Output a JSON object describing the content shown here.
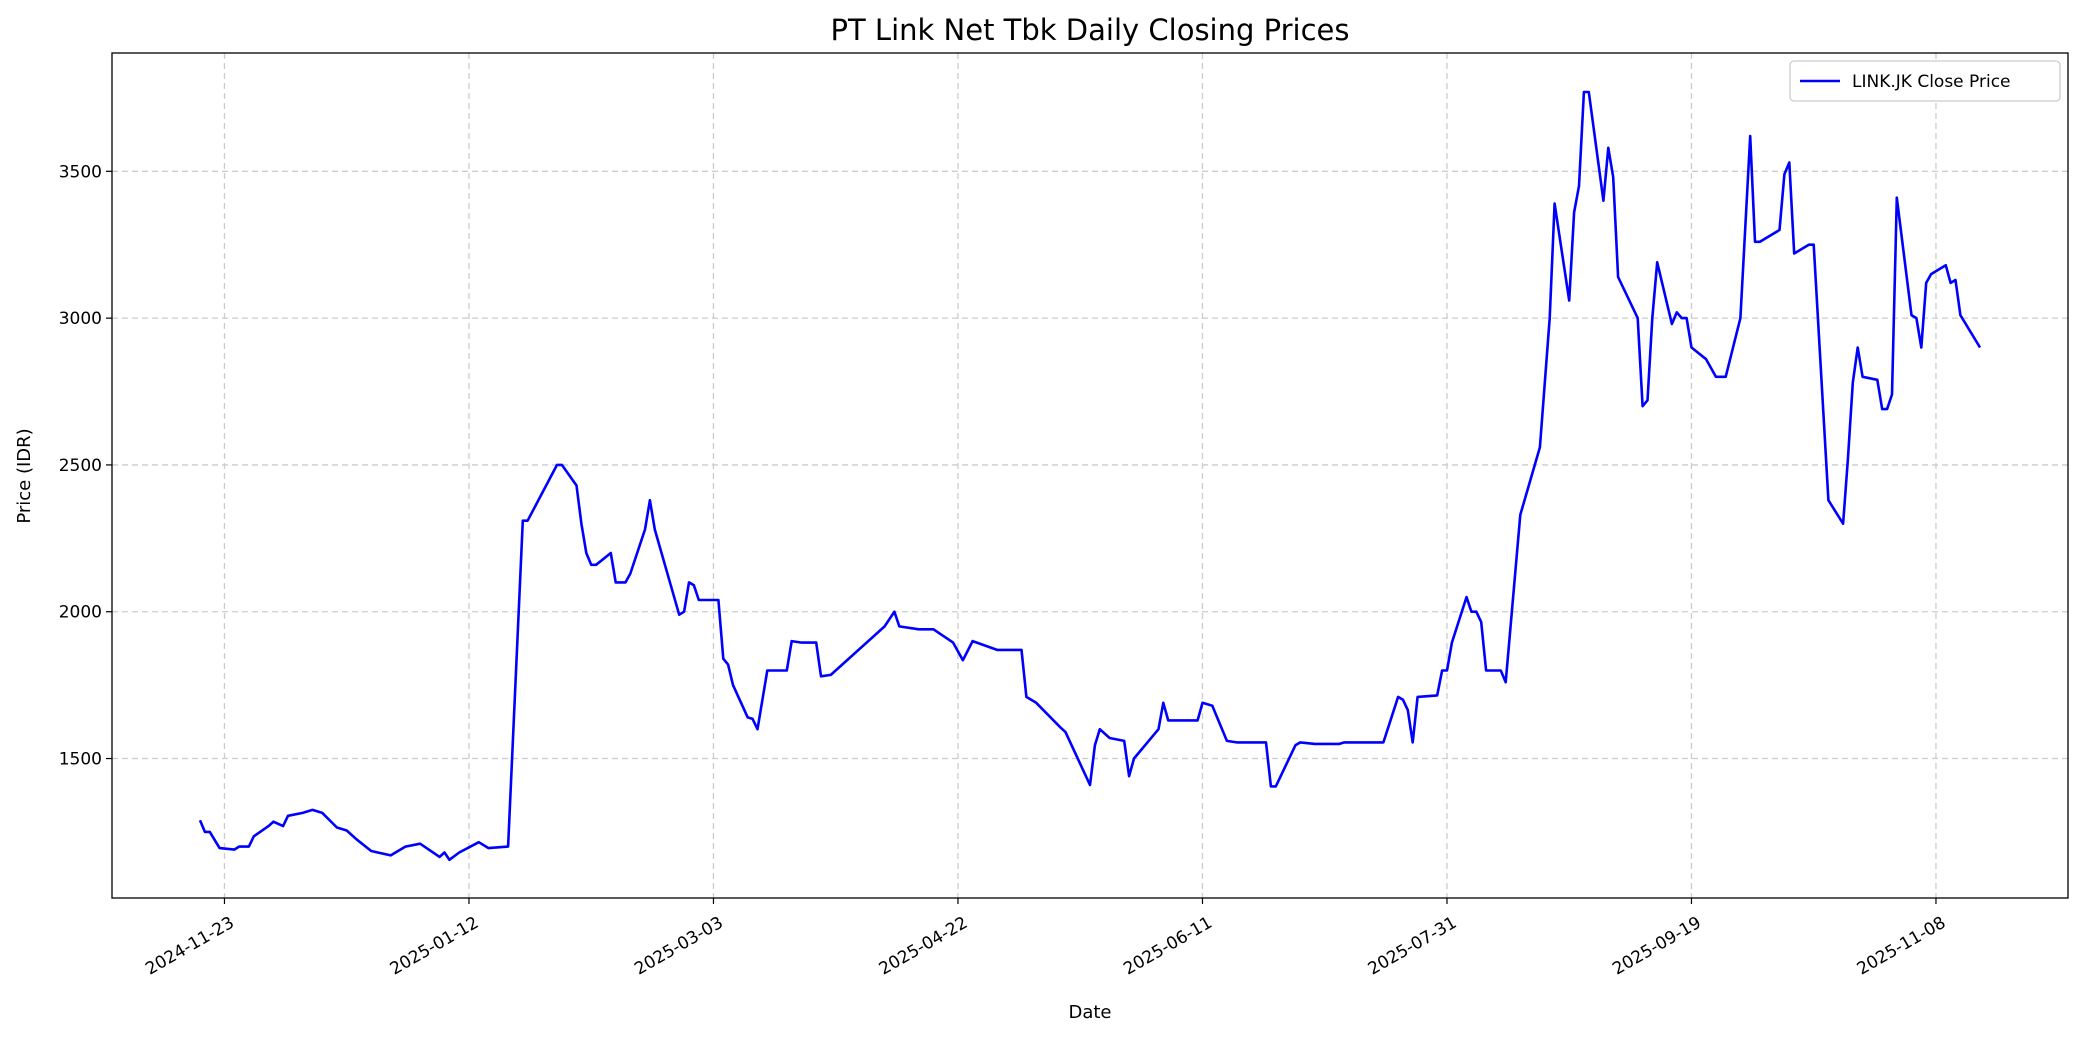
{
  "chart_data": {
    "type": "line",
    "title": "PT Link Net Tbk Daily Closing Prices",
    "xlabel": "Date",
    "ylabel": "Price (IDR)",
    "xlim": [
      "2024-10-31",
      "2025-12-05"
    ],
    "ylim": [
      1025,
      3903
    ],
    "x_ticks": [
      "2024-11-23",
      "2025-01-12",
      "2025-03-03",
      "2025-04-22",
      "2025-06-11",
      "2025-07-31",
      "2025-09-19",
      "2025-11-08"
    ],
    "y_ticks": [
      1500,
      2000,
      2500,
      3000,
      3500
    ],
    "grid": true,
    "legend_position": "top-right",
    "series": [
      {
        "name": "LINK.JK Close Price",
        "color": "#0000ff",
        "points": [
          [
            "2024-11-18",
            1290
          ],
          [
            "2024-11-19",
            1250
          ],
          [
            "2024-11-20",
            1250
          ],
          [
            "2024-11-22",
            1195
          ],
          [
            "2024-11-25",
            1190
          ],
          [
            "2024-11-26",
            1200
          ],
          [
            "2024-11-28",
            1200
          ],
          [
            "2024-11-29",
            1235
          ],
          [
            "2024-12-02",
            1270
          ],
          [
            "2024-12-03",
            1285
          ],
          [
            "2024-12-05",
            1270
          ],
          [
            "2024-12-06",
            1305
          ],
          [
            "2024-12-09",
            1315
          ],
          [
            "2024-12-11",
            1325
          ],
          [
            "2024-12-13",
            1315
          ],
          [
            "2024-12-16",
            1265
          ],
          [
            "2024-12-18",
            1255
          ],
          [
            "2024-12-20",
            1225
          ],
          [
            "2024-12-23",
            1185
          ],
          [
            "2024-12-27",
            1170
          ],
          [
            "2024-12-30",
            1200
          ],
          [
            "2025-01-02",
            1210
          ],
          [
            "2025-01-06",
            1165
          ],
          [
            "2025-01-07",
            1180
          ],
          [
            "2025-01-08",
            1155
          ],
          [
            "2025-01-10",
            1180
          ],
          [
            "2025-01-14",
            1215
          ],
          [
            "2025-01-16",
            1195
          ],
          [
            "2025-01-20",
            1200
          ],
          [
            "2025-01-23",
            2310
          ],
          [
            "2025-01-24",
            2310
          ],
          [
            "2025-01-30",
            2500
          ],
          [
            "2025-01-31",
            2500
          ],
          [
            "2025-02-03",
            2430
          ],
          [
            "2025-02-04",
            2300
          ],
          [
            "2025-02-05",
            2200
          ],
          [
            "2025-02-06",
            2160
          ],
          [
            "2025-02-07",
            2160
          ],
          [
            "2025-02-10",
            2200
          ],
          [
            "2025-02-11",
            2100
          ],
          [
            "2025-02-13",
            2100
          ],
          [
            "2025-02-14",
            2130
          ],
          [
            "2025-02-17",
            2280
          ],
          [
            "2025-02-18",
            2380
          ],
          [
            "2025-02-19",
            2280
          ],
          [
            "2025-02-24",
            1990
          ],
          [
            "2025-02-25",
            2000
          ],
          [
            "2025-02-26",
            2100
          ],
          [
            "2025-02-27",
            2090
          ],
          [
            "2025-02-28",
            2040
          ],
          [
            "2025-03-04",
            2040
          ],
          [
            "2025-03-05",
            1840
          ],
          [
            "2025-03-06",
            1820
          ],
          [
            "2025-03-07",
            1750
          ],
          [
            "2025-03-10",
            1640
          ],
          [
            "2025-03-11",
            1635
          ],
          [
            "2025-03-12",
            1600
          ],
          [
            "2025-03-14",
            1800
          ],
          [
            "2025-03-18",
            1800
          ],
          [
            "2025-03-19",
            1900
          ],
          [
            "2025-03-21",
            1895
          ],
          [
            "2025-03-24",
            1895
          ],
          [
            "2025-03-25",
            1780
          ],
          [
            "2025-03-27",
            1785
          ],
          [
            "2025-04-07",
            1950
          ],
          [
            "2025-04-09",
            2000
          ],
          [
            "2025-04-10",
            1950
          ],
          [
            "2025-04-14",
            1940
          ],
          [
            "2025-04-17",
            1940
          ],
          [
            "2025-04-21",
            1895
          ],
          [
            "2025-04-23",
            1835
          ],
          [
            "2025-04-25",
            1900
          ],
          [
            "2025-04-30",
            1870
          ],
          [
            "2025-05-05",
            1870
          ],
          [
            "2025-05-06",
            1710
          ],
          [
            "2025-05-08",
            1690
          ],
          [
            "2025-05-13",
            1605
          ],
          [
            "2025-05-14",
            1590
          ],
          [
            "2025-05-19",
            1410
          ],
          [
            "2025-05-20",
            1545
          ],
          [
            "2025-05-21",
            1600
          ],
          [
            "2025-05-23",
            1570
          ],
          [
            "2025-05-26",
            1560
          ],
          [
            "2025-05-27",
            1440
          ],
          [
            "2025-05-28",
            1500
          ],
          [
            "2025-06-02",
            1600
          ],
          [
            "2025-06-03",
            1690
          ],
          [
            "2025-06-04",
            1630
          ],
          [
            "2025-06-10",
            1630
          ],
          [
            "2025-06-11",
            1690
          ],
          [
            "2025-06-13",
            1680
          ],
          [
            "2025-06-16",
            1560
          ],
          [
            "2025-06-18",
            1555
          ],
          [
            "2025-06-24",
            1555
          ],
          [
            "2025-06-25",
            1405
          ],
          [
            "2025-06-26",
            1405
          ],
          [
            "2025-06-30",
            1545
          ],
          [
            "2025-07-01",
            1555
          ],
          [
            "2025-07-04",
            1550
          ],
          [
            "2025-07-09",
            1550
          ],
          [
            "2025-07-10",
            1555
          ],
          [
            "2025-07-18",
            1555
          ],
          [
            "2025-07-21",
            1710
          ],
          [
            "2025-07-22",
            1700
          ],
          [
            "2025-07-23",
            1665
          ],
          [
            "2025-07-24",
            1555
          ],
          [
            "2025-07-25",
            1710
          ],
          [
            "2025-07-29",
            1715
          ],
          [
            "2025-07-30",
            1800
          ],
          [
            "2025-07-31",
            1800
          ],
          [
            "2025-08-01",
            1895
          ],
          [
            "2025-08-04",
            2050
          ],
          [
            "2025-08-05",
            2000
          ],
          [
            "2025-08-06",
            2000
          ],
          [
            "2025-08-07",
            1965
          ],
          [
            "2025-08-08",
            1800
          ],
          [
            "2025-08-11",
            1800
          ],
          [
            "2025-08-12",
            1760
          ],
          [
            "2025-08-15",
            2330
          ],
          [
            "2025-08-19",
            2560
          ],
          [
            "2025-08-21",
            3000
          ],
          [
            "2025-08-22",
            3390
          ],
          [
            "2025-08-25",
            3060
          ],
          [
            "2025-08-26",
            3360
          ],
          [
            "2025-08-27",
            3450
          ],
          [
            "2025-08-28",
            3770
          ],
          [
            "2025-08-29",
            3770
          ],
          [
            "2025-09-01",
            3400
          ],
          [
            "2025-09-02",
            3580
          ],
          [
            "2025-09-03",
            3480
          ],
          [
            "2025-09-04",
            3140
          ],
          [
            "2025-09-08",
            3000
          ],
          [
            "2025-09-09",
            2700
          ],
          [
            "2025-09-10",
            2720
          ],
          [
            "2025-09-11",
            3000
          ],
          [
            "2025-09-12",
            3190
          ],
          [
            "2025-09-15",
            2980
          ],
          [
            "2025-09-16",
            3020
          ],
          [
            "2025-09-17",
            3000
          ],
          [
            "2025-09-18",
            3000
          ],
          [
            "2025-09-19",
            2900
          ],
          [
            "2025-09-22",
            2860
          ],
          [
            "2025-09-24",
            2800
          ],
          [
            "2025-09-26",
            2800
          ],
          [
            "2025-09-29",
            3000
          ],
          [
            "2025-10-01",
            3620
          ],
          [
            "2025-10-02",
            3260
          ],
          [
            "2025-10-03",
            3260
          ],
          [
            "2025-10-07",
            3300
          ],
          [
            "2025-10-08",
            3490
          ],
          [
            "2025-10-09",
            3530
          ],
          [
            "2025-10-10",
            3220
          ],
          [
            "2025-10-13",
            3250
          ],
          [
            "2025-10-14",
            3250
          ],
          [
            "2025-10-17",
            2380
          ],
          [
            "2025-10-20",
            2300
          ],
          [
            "2025-10-21",
            2520
          ],
          [
            "2025-10-22",
            2780
          ],
          [
            "2025-10-23",
            2900
          ],
          [
            "2025-10-24",
            2800
          ],
          [
            "2025-10-27",
            2790
          ],
          [
            "2025-10-28",
            2690
          ],
          [
            "2025-10-29",
            2690
          ],
          [
            "2025-10-30",
            2740
          ],
          [
            "2025-10-31",
            3410
          ],
          [
            "2025-11-03",
            3010
          ],
          [
            "2025-11-04",
            3000
          ],
          [
            "2025-11-05",
            2900
          ],
          [
            "2025-11-06",
            3120
          ],
          [
            "2025-11-07",
            3150
          ],
          [
            "2025-11-10",
            3180
          ],
          [
            "2025-11-11",
            3120
          ],
          [
            "2025-11-12",
            3130
          ],
          [
            "2025-11-13",
            3010
          ],
          [
            "2025-11-17",
            2900
          ]
        ]
      }
    ]
  }
}
